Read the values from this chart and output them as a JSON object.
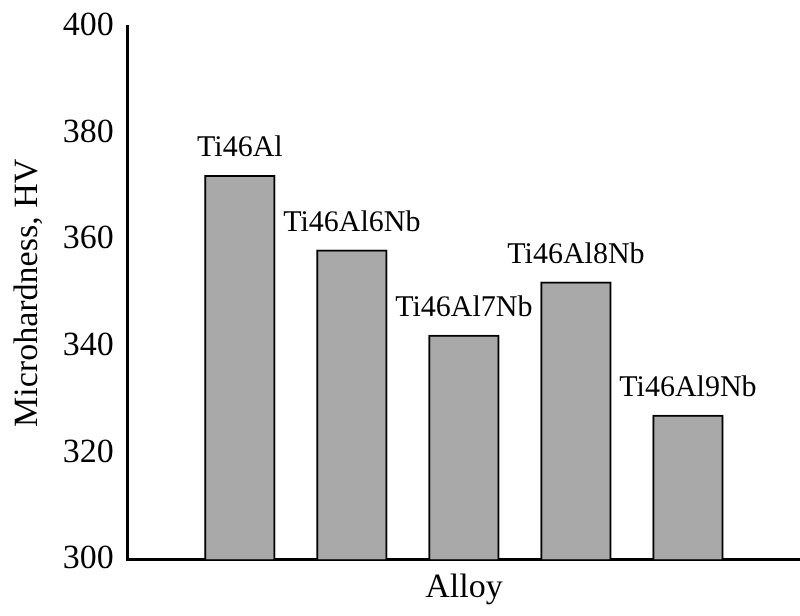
{
  "chart_data": {
    "type": "bar",
    "xlabel": "Alloy",
    "ylabel": "Microhardness, HV",
    "categories": [
      "Ti46Al",
      "Ti46Al6Nb",
      "Ti46Al7Nb",
      "Ti46Al8Nb",
      "Ti46Al9Nb"
    ],
    "values": [
      372,
      358,
      342,
      352,
      327
    ],
    "color": "#a9a9a9",
    "ylim": [
      300,
      400
    ],
    "yticks": [
      300,
      320,
      340,
      360,
      380,
      400
    ],
    "tick_labels": "y"
  }
}
